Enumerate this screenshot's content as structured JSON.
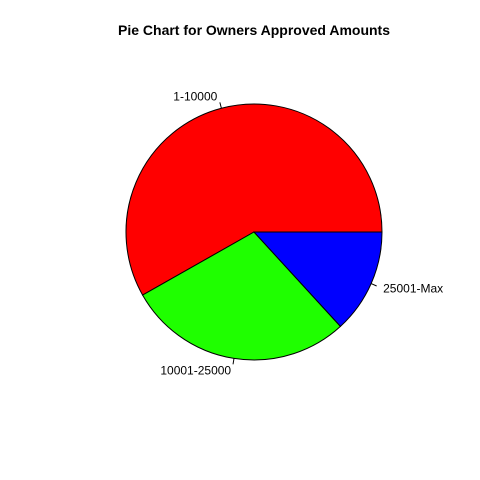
{
  "chart_data": {
    "type": "pie",
    "title": "Pie Chart for Owners Approved Amounts",
    "categories": [
      "1-10000",
      "10001-25000",
      "25001-Max"
    ],
    "values": [
      58.2,
      28.6,
      13.2
    ],
    "colors": [
      "#ff0000",
      "#1fff00",
      "#0000ff"
    ],
    "start_angle_deg": 0,
    "direction": "counterclockwise"
  }
}
